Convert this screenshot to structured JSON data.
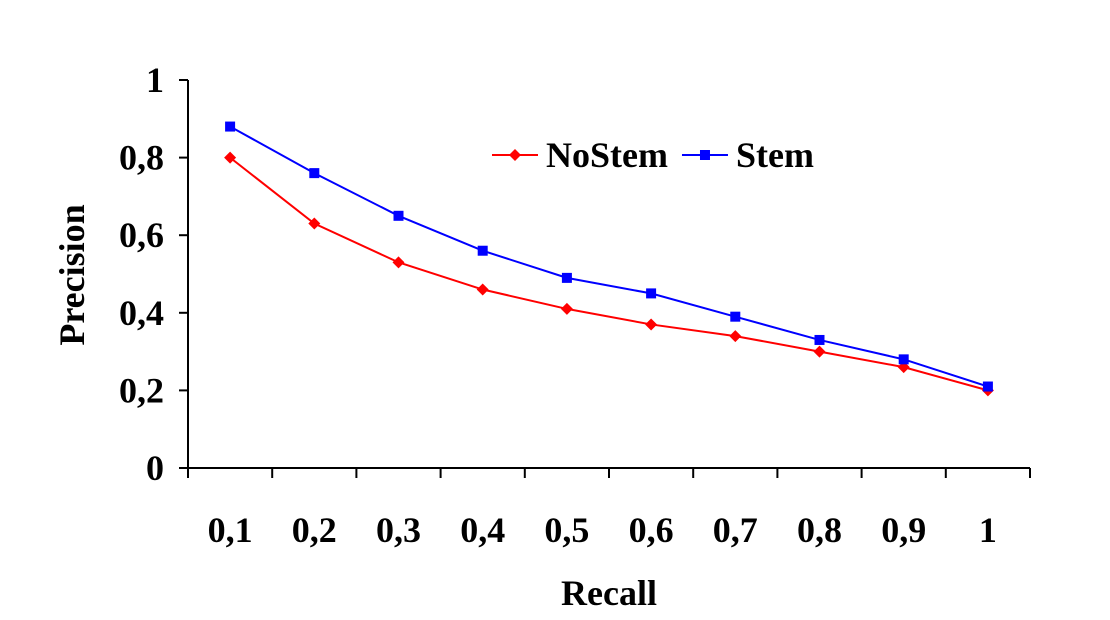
{
  "chart_data": {
    "type": "line",
    "title": "",
    "xlabel": "Recall",
    "ylabel": "Precision",
    "categories": [
      "0,1",
      "0,2",
      "0,3",
      "0,4",
      "0,5",
      "0,6",
      "0,7",
      "0,8",
      "0,9",
      "1"
    ],
    "ylim": [
      0,
      1
    ],
    "yticks": [
      0,
      0.2,
      0.4,
      0.6,
      0.8,
      1
    ],
    "ytick_labels": [
      "0",
      "0,2",
      "0,4",
      "0,6",
      "0,8",
      "1"
    ],
    "grid": false,
    "legend": "top-center",
    "series": [
      {
        "name": "NoStem",
        "color": "#ff0000",
        "marker": "diamond",
        "values": [
          0.8,
          0.63,
          0.53,
          0.46,
          0.41,
          0.37,
          0.34,
          0.3,
          0.26,
          0.2
        ]
      },
      {
        "name": "Stem",
        "color": "#0000ff",
        "marker": "square",
        "values": [
          0.88,
          0.76,
          0.65,
          0.56,
          0.49,
          0.45,
          0.39,
          0.33,
          0.28,
          0.21
        ]
      }
    ]
  }
}
